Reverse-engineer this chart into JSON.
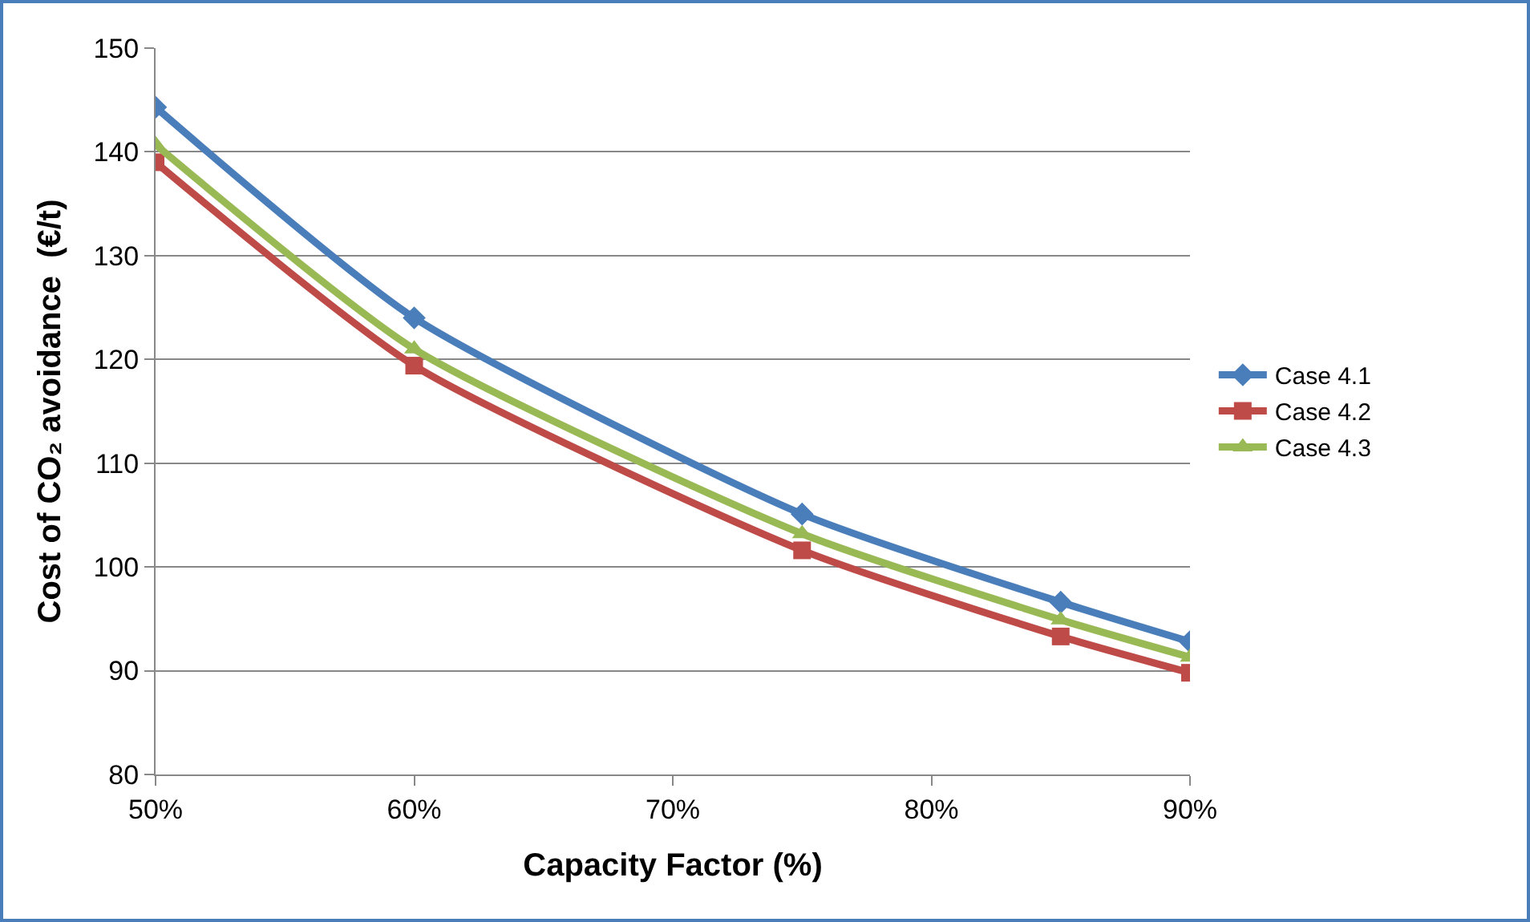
{
  "chart_data": {
    "type": "line",
    "xlabel": "Capacity Factor (%)",
    "ylabel": "Cost of CO₂ avoidance  (€/t)",
    "x": [
      50,
      60,
      75,
      85,
      90
    ],
    "series": [
      {
        "name": "Case 4.1",
        "color": "#4a7ebb",
        "marker": "diamond",
        "values": [
          144.3,
          124.0,
          105.1,
          96.6,
          92.8
        ]
      },
      {
        "name": "Case 4.2",
        "color": "#be4b48",
        "marker": "square",
        "values": [
          139.0,
          119.4,
          101.6,
          93.3,
          89.8
        ]
      },
      {
        "name": "Case 4.3",
        "color": "#98b954",
        "marker": "triangle",
        "values": [
          140.7,
          121.0,
          103.2,
          94.9,
          91.3
        ]
      }
    ],
    "xlim": [
      50,
      90
    ],
    "xticks": [
      {
        "value": 50,
        "label": "50%"
      },
      {
        "value": 60,
        "label": "60%"
      },
      {
        "value": 70,
        "label": "70%"
      },
      {
        "value": 80,
        "label": "80%"
      },
      {
        "value": 90,
        "label": "90%"
      }
    ],
    "ylim": [
      80,
      150
    ],
    "yticks": [
      80,
      90,
      100,
      110,
      120,
      130,
      140,
      150
    ],
    "grid": "y",
    "legend": "right",
    "line_style": "solid"
  }
}
